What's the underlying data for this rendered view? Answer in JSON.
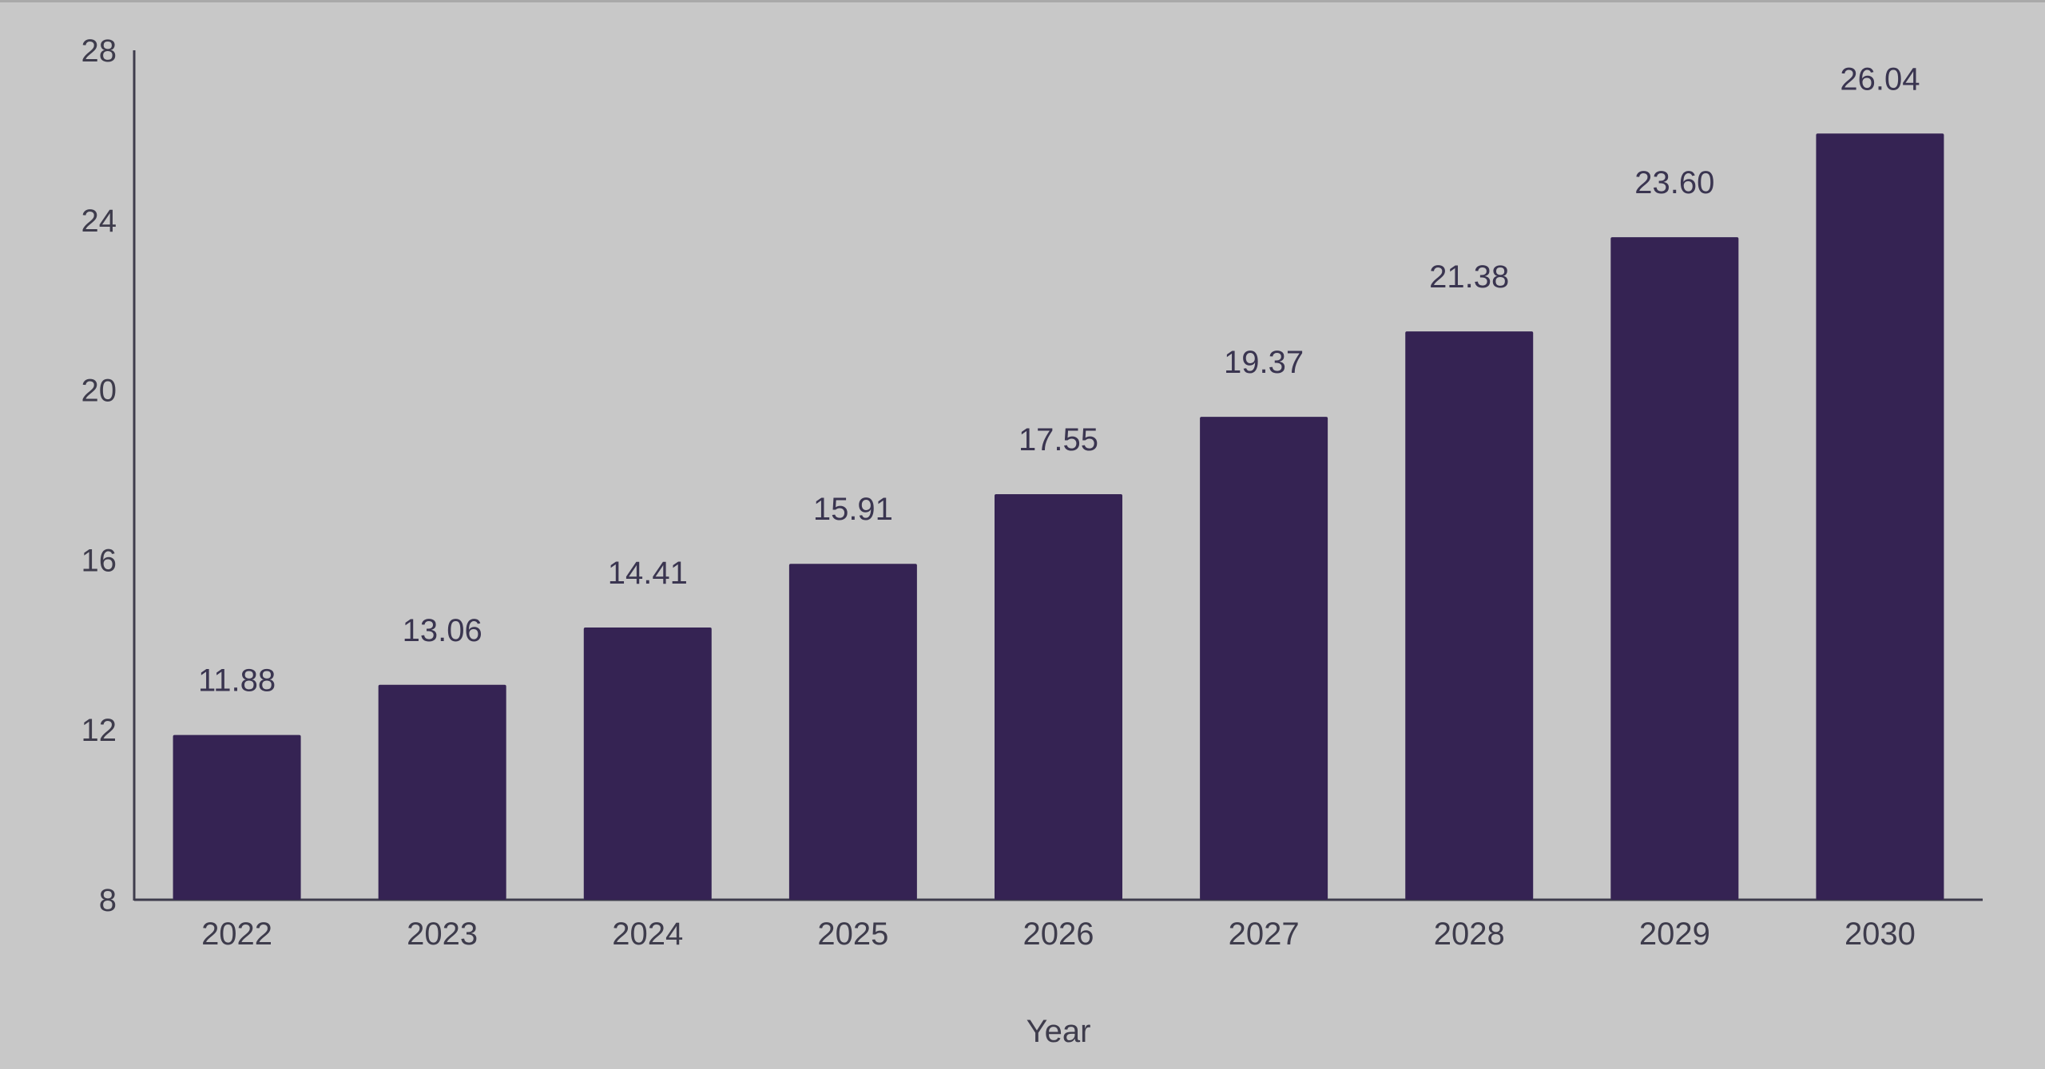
{
  "chart_data": {
    "type": "bar",
    "categories": [
      "2022",
      "2023",
      "2024",
      "2025",
      "2026",
      "2027",
      "2028",
      "2029",
      "2030"
    ],
    "values": [
      11.88,
      13.06,
      14.41,
      15.91,
      17.55,
      19.37,
      21.38,
      23.6,
      26.04
    ],
    "value_labels": [
      "11.88",
      "13.06",
      "14.41",
      "15.91",
      "17.55",
      "19.37",
      "21.38",
      "23.60",
      "26.04"
    ],
    "title": "",
    "xlabel": "Year",
    "ylabel": "",
    "ylim": [
      8,
      28
    ],
    "yticks": [
      8,
      12,
      16,
      20,
      24,
      28
    ],
    "grid": false,
    "colors": {
      "bar": "#352353",
      "axis": "#3e3c4c",
      "background": "#c8c8c8"
    }
  }
}
